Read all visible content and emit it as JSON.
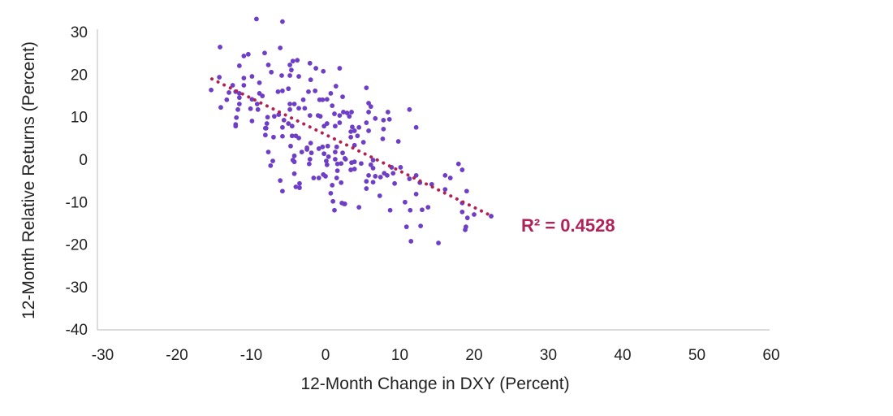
{
  "chart_data": {
    "type": "scatter",
    "title": "",
    "xlabel": "12-Month Change in DXY (Percent)",
    "ylabel": "12-Month Relative Returns (Percent)",
    "xlim": [
      -30,
      60
    ],
    "ylim": [
      -40,
      30
    ],
    "xticks": [
      "-30",
      "-20",
      "-10",
      "0",
      "10",
      "20",
      "30",
      "40",
      "50",
      "60"
    ],
    "yticks": [
      "30",
      "20",
      "10",
      "0",
      "-10",
      "-20",
      "-30",
      "-40"
    ],
    "grid": false,
    "legend": "none",
    "point_color": "#6e3fc6",
    "trendline": {
      "type": "linear",
      "color": "#b3214f",
      "style": "dotted",
      "from": [
        -15.3,
        18.9
      ],
      "to": [
        22.3,
        -13.3
      ],
      "label": "R² = 0.4528",
      "label_color": "#b0235a"
    },
    "points": [
      [
        -9.3,
        33.0
      ],
      [
        -5.8,
        32.4
      ],
      [
        -14.2,
        26.4
      ],
      [
        -6.1,
        26.2
      ],
      [
        -11.0,
        24.3
      ],
      [
        -10.4,
        24.7
      ],
      [
        -8.2,
        25.0
      ],
      [
        -11.6,
        22.0
      ],
      [
        -7.7,
        22.2
      ],
      [
        -7.3,
        20.5
      ],
      [
        -4.8,
        22.2
      ],
      [
        -4.4,
        23.1
      ],
      [
        -3.8,
        23.3
      ],
      [
        -4.6,
        21.0
      ],
      [
        -4.8,
        19.7
      ],
      [
        -3.6,
        19.5
      ],
      [
        -5.9,
        19.7
      ],
      [
        -2.1,
        22.6
      ],
      [
        -1.3,
        21.4
      ],
      [
        -0.3,
        20.7
      ],
      [
        -2.0,
        18.7
      ],
      [
        1.9,
        21.4
      ],
      [
        1.4,
        17.2
      ],
      [
        -14.3,
        19.3
      ],
      [
        -15.4,
        16.3
      ],
      [
        -11.0,
        19.1
      ],
      [
        -9.9,
        19.5
      ],
      [
        -11.0,
        17.4
      ],
      [
        -8.9,
        18.0
      ],
      [
        -12.5,
        17.4
      ],
      [
        -13.0,
        15.7
      ],
      [
        -12.1,
        15.9
      ],
      [
        -11.6,
        15.5
      ],
      [
        -8.9,
        15.5
      ],
      [
        -8.5,
        14.9
      ],
      [
        -6.4,
        15.9
      ],
      [
        -5.8,
        16.1
      ],
      [
        -5.0,
        16.6
      ],
      [
        -2.3,
        15.9
      ],
      [
        -1.4,
        16.1
      ],
      [
        0.7,
        15.5
      ],
      [
        2.3,
        14.7
      ],
      [
        -13.3,
        14.0
      ],
      [
        -11.6,
        14.5
      ],
      [
        -9.9,
        14.1
      ],
      [
        -14.1,
        12.2
      ],
      [
        -11.6,
        13.0
      ],
      [
        -11.8,
        11.7
      ],
      [
        -9.2,
        13.0
      ],
      [
        -9.1,
        11.7
      ],
      [
        -10.1,
        11.9
      ],
      [
        -4.8,
        13.0
      ],
      [
        -4.2,
        13.0
      ],
      [
        -4.8,
        11.7
      ],
      [
        -3.0,
        14.0
      ],
      [
        -3.6,
        12.0
      ],
      [
        -2.8,
        12.0
      ],
      [
        -0.4,
        14.0
      ],
      [
        0.2,
        14.1
      ],
      [
        -0.8,
        14.0
      ],
      [
        0.9,
        12.6
      ],
      [
        -2.1,
        10.3
      ],
      [
        -1.0,
        10.3
      ],
      [
        -0.7,
        10.1
      ],
      [
        -12.0,
        9.8
      ],
      [
        -12.1,
        8.2
      ],
      [
        -9.9,
        9.0
      ],
      [
        -7.8,
        9.9
      ],
      [
        -7.9,
        8.4
      ],
      [
        -6.9,
        10.1
      ],
      [
        -6.3,
        10.5
      ],
      [
        -5.6,
        9.2
      ],
      [
        -5.0,
        8.4
      ],
      [
        -4.5,
        7.8
      ],
      [
        1.2,
        10.7
      ],
      [
        1.9,
        10.3
      ],
      [
        2.4,
        11.1
      ],
      [
        1.9,
        8.6
      ],
      [
        -8.1,
        7.3
      ],
      [
        -0.2,
        7.8
      ],
      [
        0.2,
        8.4
      ],
      [
        1.3,
        7.8
      ],
      [
        -12.1,
        7.8
      ],
      [
        -8.0,
        7.3
      ],
      [
        -8.1,
        5.7
      ],
      [
        -7.0,
        5.2
      ],
      [
        -5.8,
        7.5
      ],
      [
        -5.8,
        5.4
      ],
      [
        -4.5,
        5.5
      ],
      [
        -4.0,
        5.5
      ],
      [
        -3.6,
        5.0
      ],
      [
        -4.7,
        3.1
      ],
      [
        -7.7,
        1.7
      ],
      [
        -7.1,
        -0.4
      ],
      [
        -7.4,
        -1.5
      ],
      [
        -4.4,
        -0.2
      ],
      [
        -4.2,
        -0.6
      ],
      [
        -4.2,
        0.8
      ],
      [
        -3.2,
        1.7
      ],
      [
        -2.5,
        2.3
      ],
      [
        -2.5,
        2.7
      ],
      [
        -2.0,
        3.8
      ],
      [
        -1.9,
        1.5
      ],
      [
        -2.1,
        0.0
      ],
      [
        -2.2,
        -1.1
      ],
      [
        -0.9,
        2.5
      ],
      [
        -0.4,
        2.9
      ],
      [
        0.3,
        3.1
      ],
      [
        -0.2,
        1.3
      ],
      [
        0.4,
        0.6
      ],
      [
        0.1,
        -0.4
      ],
      [
        0.2,
        -1.3
      ],
      [
        1.3,
        1.7
      ],
      [
        1.5,
        2.9
      ],
      [
        1.3,
        0.0
      ],
      [
        1.6,
        -1.1
      ],
      [
        2.1,
        -1.0
      ],
      [
        2.7,
        0.0
      ],
      [
        2.3,
        1.5
      ],
      [
        1.6,
        -2.7
      ],
      [
        -4.2,
        -3.4
      ],
      [
        -1.6,
        -4.4
      ],
      [
        -0.9,
        -4.4
      ],
      [
        -0.3,
        -3.6
      ],
      [
        0.0,
        -4.0
      ],
      [
        1.5,
        -4.4
      ],
      [
        0.9,
        -6.1
      ],
      [
        2.1,
        -5.5
      ],
      [
        -6.1,
        -5.0
      ],
      [
        -5.8,
        -7.5
      ],
      [
        -4.0,
        -6.5
      ],
      [
        -3.5,
        -6.7
      ],
      [
        -3.5,
        -5.7
      ],
      [
        0.7,
        -8.0
      ],
      [
        1.0,
        -9.9
      ],
      [
        2.2,
        -10.3
      ],
      [
        2.5,
        -10.5
      ],
      [
        1.2,
        -12.0
      ],
      [
        5.5,
        16.8
      ],
      [
        5.8,
        13.2
      ],
      [
        6.1,
        12.4
      ],
      [
        11.3,
        11.7
      ],
      [
        2.9,
        10.9
      ],
      [
        3.5,
        11.1
      ],
      [
        3.2,
        10.1
      ],
      [
        5.8,
        11.1
      ],
      [
        8.4,
        11.1
      ],
      [
        6.7,
        9.6
      ],
      [
        7.8,
        9.2
      ],
      [
        8.6,
        9.4
      ],
      [
        5.5,
        8.6
      ],
      [
        12.2,
        7.5
      ],
      [
        3.6,
        7.6
      ],
      [
        4.5,
        7.5
      ],
      [
        3.9,
        6.7
      ],
      [
        3.4,
        6.5
      ],
      [
        5.8,
        6.7
      ],
      [
        7.8,
        7.1
      ],
      [
        4.3,
        5.5
      ],
      [
        3.4,
        5.2
      ],
      [
        7.7,
        4.8
      ],
      [
        5.1,
        4.0
      ],
      [
        9.8,
        4.2
      ],
      [
        3.9,
        3.3
      ],
      [
        2.6,
        0.2
      ],
      [
        3.5,
        -0.8
      ],
      [
        3.9,
        -0.6
      ],
      [
        4.8,
        -1.0
      ],
      [
        6.1,
        -1.3
      ],
      [
        6.4,
        -2.1
      ],
      [
        6.4,
        -0.2
      ],
      [
        3.4,
        -2.5
      ],
      [
        3.9,
        -2.3
      ],
      [
        8.9,
        -1.9
      ],
      [
        10.1,
        -1.9
      ],
      [
        9.1,
        -3.3
      ],
      [
        8.3,
        -3.8
      ],
      [
        7.9,
        -3.3
      ],
      [
        7.4,
        -4.2
      ],
      [
        6.7,
        -4.0
      ],
      [
        5.8,
        -3.8
      ],
      [
        5.5,
        -5.2
      ],
      [
        6.4,
        -5.4
      ],
      [
        5.5,
        -6.9
      ],
      [
        12.2,
        -3.8
      ],
      [
        11.3,
        -4.6
      ],
      [
        12.7,
        -5.5
      ],
      [
        14.3,
        -5.9
      ],
      [
        9.3,
        -5.7
      ],
      [
        7.3,
        -8.6
      ],
      [
        12.2,
        -8.2
      ],
      [
        10.7,
        -10.1
      ],
      [
        11.4,
        -12.0
      ],
      [
        8.7,
        -12.0
      ],
      [
        4.5,
        -11.3
      ],
      [
        2.6,
        -10.5
      ],
      [
        13.0,
        -11.9
      ],
      [
        13.8,
        -11.3
      ],
      [
        10.9,
        -15.9
      ],
      [
        12.8,
        -15.7
      ],
      [
        11.5,
        -19.3
      ],
      [
        15.2,
        -19.7
      ],
      [
        16.1,
        -3.8
      ],
      [
        16.8,
        -4.4
      ],
      [
        16.1,
        -7.1
      ],
      [
        17.9,
        -1.1
      ],
      [
        18.4,
        -2.5
      ],
      [
        19.0,
        -7.5
      ],
      [
        18.4,
        -10.3
      ],
      [
        18.4,
        -12.4
      ],
      [
        19.1,
        -13.8
      ],
      [
        20.0,
        -13.0
      ],
      [
        22.3,
        -13.4
      ],
      [
        18.9,
        -15.9
      ],
      [
        18.8,
        -16.6
      ]
    ]
  }
}
